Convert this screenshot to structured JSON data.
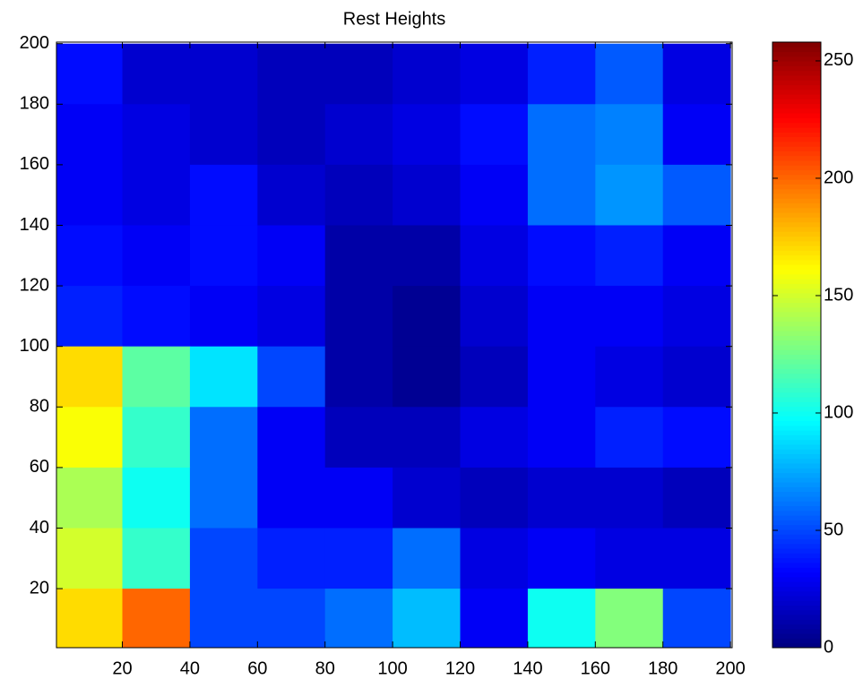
{
  "chart_data": {
    "type": "heatmap",
    "title": "Rest Heights",
    "x": [
      10,
      30,
      50,
      70,
      90,
      110,
      130,
      150,
      170,
      190
    ],
    "y": [
      190,
      170,
      150,
      130,
      110,
      90,
      70,
      50,
      30,
      10
    ],
    "values": [
      [
        35,
        20,
        20,
        15,
        15,
        20,
        25,
        40,
        55,
        25
      ],
      [
        30,
        25,
        20,
        15,
        20,
        25,
        35,
        60,
        65,
        30
      ],
      [
        30,
        25,
        35,
        20,
        15,
        20,
        30,
        60,
        70,
        55
      ],
      [
        35,
        30,
        35,
        30,
        10,
        10,
        25,
        35,
        40,
        30
      ],
      [
        40,
        35,
        30,
        25,
        10,
        5,
        20,
        30,
        30,
        25
      ],
      [
        170,
        120,
        90,
        50,
        10,
        5,
        15,
        30,
        25,
        20
      ],
      [
        160,
        110,
        60,
        30,
        15,
        15,
        25,
        30,
        40,
        35
      ],
      [
        140,
        100,
        60,
        30,
        30,
        20,
        15,
        20,
        20,
        15
      ],
      [
        150,
        110,
        50,
        40,
        40,
        60,
        25,
        30,
        25,
        25
      ],
      [
        170,
        200,
        50,
        50,
        60,
        80,
        30,
        100,
        130,
        50
      ]
    ],
    "xlim": [
      0.5,
      200.5
    ],
    "ylim": [
      0.5,
      200.5
    ],
    "xticks": [
      20,
      40,
      60,
      80,
      100,
      120,
      140,
      160,
      180,
      200
    ],
    "yticks": [
      20,
      40,
      60,
      80,
      100,
      120,
      140,
      160,
      180,
      200
    ],
    "colormap": "jet",
    "clim": [
      0,
      258
    ],
    "cticks": [
      0,
      50,
      100,
      150,
      200,
      250
    ]
  }
}
